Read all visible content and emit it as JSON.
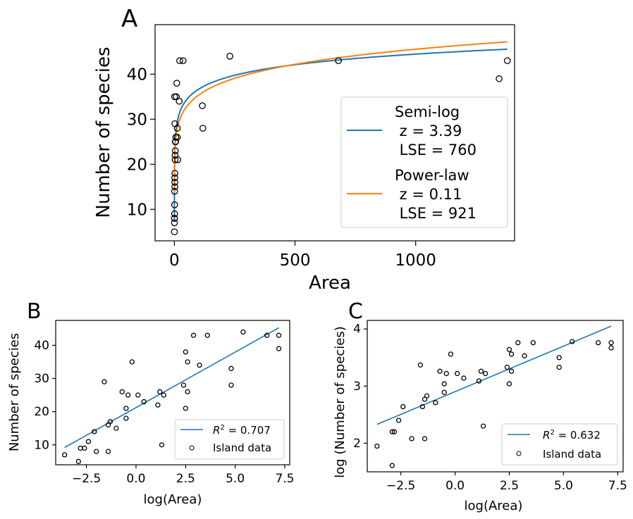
{
  "chart_data": [
    {
      "panel_label": "A",
      "type": "scatter",
      "xlabel": "Area",
      "ylabel": "Number of species",
      "xlim": [
        -80,
        1410
      ],
      "ylim": [
        3,
        51
      ],
      "xticks": [
        0,
        500,
        1000
      ],
      "yticks": [
        10,
        20,
        30,
        40
      ],
      "x_tick_labels": [
        "0",
        "500",
        "1000"
      ],
      "y_tick_labels": [
        "10",
        "20",
        "30",
        "40"
      ],
      "legend_position": "lower-right",
      "scatter": {
        "name": "Island data",
        "points": [
          [
            0.1,
            5
          ],
          [
            0.2,
            7
          ],
          [
            0.3,
            8
          ],
          [
            0.5,
            8
          ],
          [
            1,
            9
          ],
          [
            1,
            11
          ],
          [
            1,
            14
          ],
          [
            2,
            15
          ],
          [
            2,
            16
          ],
          [
            1.5,
            17
          ],
          [
            2,
            18
          ],
          [
            3,
            21
          ],
          [
            3,
            22
          ],
          [
            4,
            23
          ],
          [
            4,
            25
          ],
          [
            5,
            25
          ],
          [
            6,
            26
          ],
          [
            2,
            29
          ],
          [
            0.9,
            35
          ],
          [
            8,
            35
          ],
          [
            10,
            38
          ],
          [
            12,
            26
          ],
          [
            12,
            28
          ],
          [
            14,
            21
          ],
          [
            20,
            34
          ],
          [
            22,
            43
          ],
          [
            36,
            43
          ],
          [
            116,
            33
          ],
          [
            118,
            28
          ],
          [
            230,
            44
          ],
          [
            680,
            43
          ],
          [
            1346,
            39
          ],
          [
            1380,
            43
          ]
        ]
      },
      "series": [
        {
          "name": "Semi-log",
          "color": "#1f77b4",
          "curve": {
            "form": "semi-log",
            "a": 21.04,
            "z": 3.39
          }
        },
        {
          "name": "Power-law",
          "color": "#ff7f0e",
          "curve": {
            "form": "power-law",
            "c": 21.3,
            "z": 0.11
          }
        }
      ],
      "legend": [
        {
          "lines": [
            "Semi-log",
            " z = 3.39",
            " LSE = 760"
          ],
          "color": "#1f77b4"
        },
        {
          "lines": [
            "Power-law",
            " z = 0.11",
            " LSE = 921"
          ],
          "color": "#ff7f0e"
        }
      ]
    },
    {
      "panel_label": "B",
      "type": "scatter",
      "xlabel": "log(Area)",
      "ylabel": "Number of species",
      "xlim": [
        -4.05,
        7.75
      ],
      "ylim": [
        4,
        47.5
      ],
      "xticks": [
        -2.5,
        0,
        2.5,
        5,
        7.5
      ],
      "yticks": [
        10,
        20,
        30,
        40
      ],
      "x_tick_labels": [
        "−2.5",
        "0.0",
        "2.5",
        "5.0",
        "7.5"
      ],
      "y_tick_labels": [
        "10",
        "20",
        "30",
        "40"
      ],
      "legend_position": "lower-right",
      "scatter": {
        "name": "Island data",
        "points": [
          [
            -3.6,
            7
          ],
          [
            -2.9,
            5
          ],
          [
            -2.8,
            9
          ],
          [
            -2.6,
            9
          ],
          [
            -2.4,
            11
          ],
          [
            -2.1,
            14
          ],
          [
            -2.0,
            8
          ],
          [
            -1.6,
            29
          ],
          [
            -1.4,
            16
          ],
          [
            -1.4,
            8
          ],
          [
            -1.3,
            17
          ],
          [
            -1.0,
            15
          ],
          [
            -0.7,
            26
          ],
          [
            -0.5,
            21
          ],
          [
            -0.5,
            18
          ],
          [
            -0.4,
            25
          ],
          [
            -0.2,
            35
          ],
          [
            0.1,
            25
          ],
          [
            0.4,
            23
          ],
          [
            1.1,
            22
          ],
          [
            1.2,
            26
          ],
          [
            1.3,
            10
          ],
          [
            1.4,
            25
          ],
          [
            2.4,
            28
          ],
          [
            2.5,
            38
          ],
          [
            2.6,
            35
          ],
          [
            2.5,
            21
          ],
          [
            2.6,
            26
          ],
          [
            2.9,
            43
          ],
          [
            3.2,
            34
          ],
          [
            3.6,
            43
          ],
          [
            4.8,
            33
          ],
          [
            4.8,
            28
          ],
          [
            5.4,
            44
          ],
          [
            6.6,
            43
          ],
          [
            7.2,
            43
          ],
          [
            7.2,
            39
          ]
        ]
      },
      "series": [
        {
          "name": "R² = 0.707",
          "color": "#1f77b4",
          "line": [
            [
              -3.6,
              9.2
            ],
            [
              7.2,
              45.3
            ]
          ]
        }
      ],
      "legend": [
        {
          "kind": "line",
          "prefix": "R",
          "superscript": "2",
          "value_text": " = 0.707",
          "color": "#1f77b4"
        },
        {
          "kind": "marker",
          "label": "Island data"
        }
      ]
    },
    {
      "panel_label": "C",
      "type": "scatter",
      "xlabel": "log(Area)",
      "ylabel": "log (Number of species)",
      "xlim": [
        -4.05,
        7.75
      ],
      "ylim": [
        1.5,
        4.15
      ],
      "xticks": [
        -2.5,
        0,
        2.5,
        5,
        7.5
      ],
      "yticks": [
        2,
        3,
        4
      ],
      "x_tick_labels": [
        "−2.5",
        "0.0",
        "2.5",
        "5.0",
        "7.5"
      ],
      "y_tick_labels": [
        "2",
        "3",
        "4"
      ],
      "legend_position": "lower-right",
      "scatter": {
        "name": "Island data",
        "points": [
          [
            -3.6,
            1.95
          ],
          [
            -2.9,
            2.2
          ],
          [
            -2.8,
            2.2
          ],
          [
            -2.9,
            1.61
          ],
          [
            -2.6,
            2.4
          ],
          [
            -2.4,
            2.64
          ],
          [
            -2.0,
            2.08
          ],
          [
            -1.6,
            3.37
          ],
          [
            -1.4,
            2.77
          ],
          [
            -1.5,
            2.64
          ],
          [
            -1.4,
            2.08
          ],
          [
            -1.3,
            2.83
          ],
          [
            -0.9,
            2.71
          ],
          [
            -0.7,
            3.26
          ],
          [
            -0.5,
            3.04
          ],
          [
            -0.5,
            2.89
          ],
          [
            -0.4,
            3.22
          ],
          [
            -0.2,
            3.56
          ],
          [
            0.1,
            3.22
          ],
          [
            0.4,
            3.14
          ],
          [
            1.1,
            3.09
          ],
          [
            1.2,
            3.26
          ],
          [
            1.3,
            2.3
          ],
          [
            1.4,
            3.22
          ],
          [
            2.4,
            3.33
          ],
          [
            2.5,
            3.64
          ],
          [
            2.6,
            3.56
          ],
          [
            2.5,
            3.04
          ],
          [
            2.6,
            3.26
          ],
          [
            2.9,
            3.76
          ],
          [
            3.2,
            3.53
          ],
          [
            3.6,
            3.76
          ],
          [
            4.8,
            3.5
          ],
          [
            4.8,
            3.33
          ],
          [
            5.4,
            3.78
          ],
          [
            6.6,
            3.76
          ],
          [
            7.2,
            3.76
          ],
          [
            7.2,
            3.67
          ]
        ]
      },
      "series": [
        {
          "name": "R² = 0.632",
          "color": "#1f77b4",
          "line": [
            [
              -3.6,
              2.33
            ],
            [
              7.2,
              4.05
            ]
          ]
        }
      ],
      "legend": [
        {
          "kind": "line",
          "prefix": "R",
          "superscript": "2",
          "value_text": " = 0.632",
          "color": "#1f77b4"
        },
        {
          "kind": "marker",
          "label": "Island data"
        }
      ]
    }
  ]
}
